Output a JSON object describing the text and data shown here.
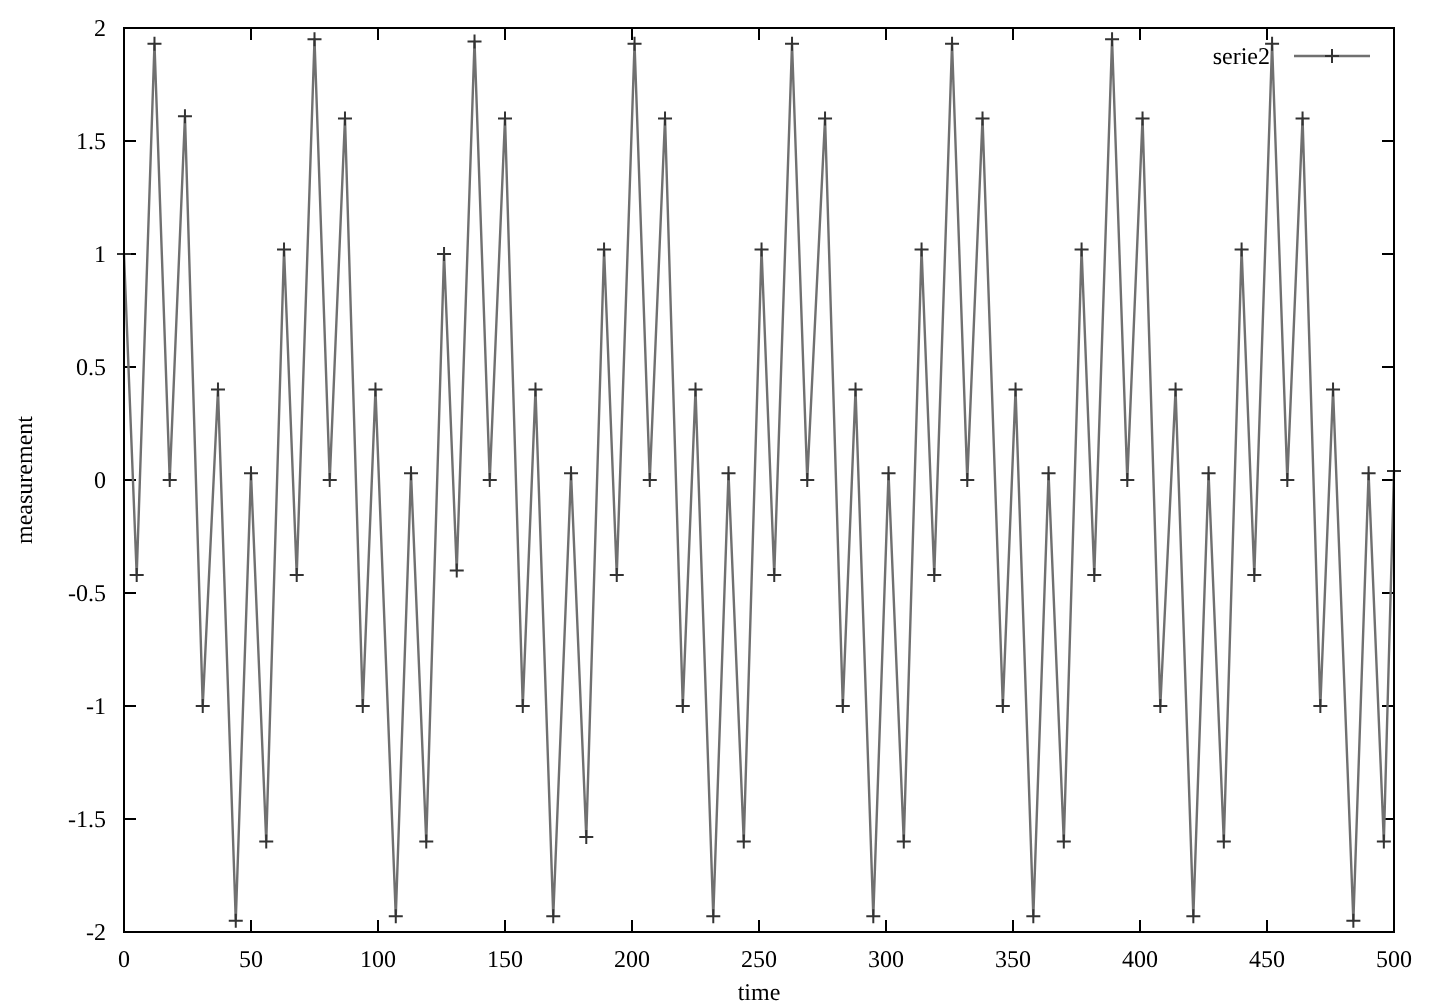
{
  "chart_data": {
    "type": "line",
    "xlabel": "time",
    "ylabel": "measurement",
    "xlim": [
      0,
      500
    ],
    "ylim": [
      -2,
      2
    ],
    "xticks": [
      0,
      50,
      100,
      150,
      200,
      250,
      300,
      350,
      400,
      450,
      500
    ],
    "yticks": [
      -2,
      -1.5,
      -1,
      -0.5,
      0,
      0.5,
      1,
      1.5,
      2
    ],
    "grid": false,
    "legend": "top right",
    "marker": "cross",
    "line_style": "solid",
    "series": [
      {
        "name": "serie2",
        "color": "#707070",
        "x": [
          0,
          5,
          12,
          18,
          24,
          31,
          37,
          44,
          50,
          56,
          63,
          68,
          75,
          81,
          87,
          94,
          99,
          107,
          113,
          119,
          126,
          131,
          138,
          144,
          150,
          157,
          162,
          169,
          176,
          182,
          189,
          194,
          201,
          207,
          213,
          220,
          225,
          232,
          238,
          244,
          251,
          256,
          263,
          269,
          276,
          283,
          288,
          295,
          301,
          307,
          314,
          319,
          326,
          332,
          338,
          346,
          351,
          358,
          364,
          370,
          377,
          382,
          389,
          395,
          401,
          408,
          414,
          421,
          427,
          433,
          440,
          445,
          452,
          458,
          464,
          471,
          476,
          484,
          490,
          496,
          500
        ],
        "values": [
          1.0,
          -0.42,
          1.93,
          0.0,
          1.61,
          -1.0,
          0.4,
          -1.95,
          0.03,
          -1.6,
          1.02,
          -0.42,
          1.95,
          0.0,
          1.6,
          -1.0,
          0.4,
          -1.93,
          0.03,
          -1.6,
          1.0,
          -0.4,
          1.94,
          0.0,
          1.6,
          -1.0,
          0.4,
          -1.93,
          0.03,
          -1.58,
          1.02,
          -0.42,
          1.93,
          0.0,
          1.6,
          -1.0,
          0.4,
          -1.93,
          0.03,
          -1.6,
          1.02,
          -0.42,
          1.93,
          0.0,
          1.6,
          -1.0,
          0.4,
          -1.93,
          0.03,
          -1.6,
          1.02,
          -0.42,
          1.93,
          0.0,
          1.6,
          -1.0,
          0.4,
          -1.93,
          0.03,
          -1.6,
          1.02,
          -0.42,
          1.95,
          0.0,
          1.6,
          -1.0,
          0.4,
          -1.93,
          0.03,
          -1.6,
          1.02,
          -0.42,
          1.93,
          0.0,
          1.6,
          -1.0,
          0.4,
          -1.95,
          0.03,
          -1.6,
          0.04
        ]
      }
    ]
  }
}
